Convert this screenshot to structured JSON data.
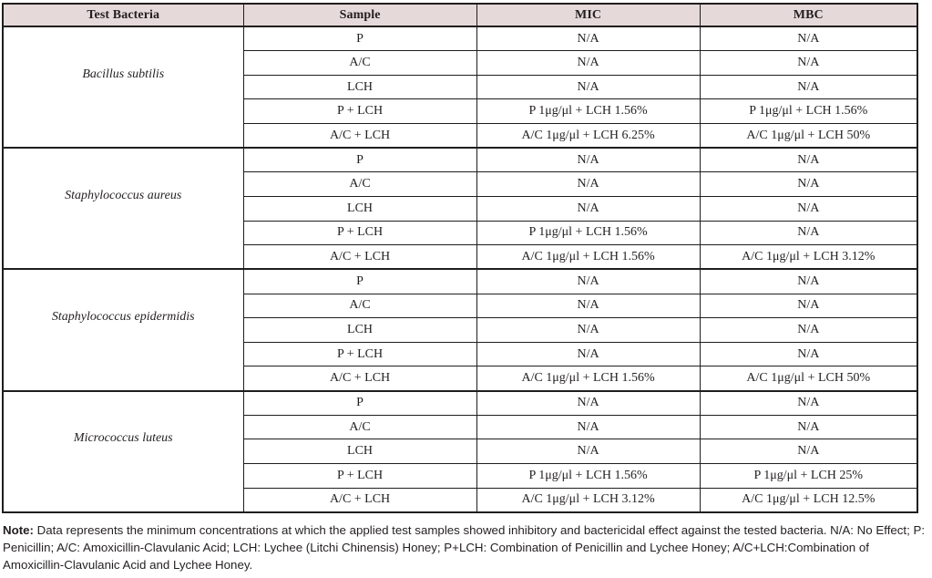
{
  "table": {
    "headers": [
      "Test Bacteria",
      "Sample",
      "MIC",
      "MBC"
    ],
    "groups": [
      {
        "bacteria": "Bacillus subtilis",
        "rows": [
          {
            "sample": "P",
            "mic": "N/A",
            "mbc": "N/A"
          },
          {
            "sample": "A/C",
            "mic": "N/A",
            "mbc": "N/A"
          },
          {
            "sample": "LCH",
            "mic": "N/A",
            "mbc": "N/A"
          },
          {
            "sample": "P + LCH",
            "mic": "P 1μg/μl + LCH 1.56%",
            "mbc": "P 1μg/μl + LCH 1.56%"
          },
          {
            "sample": "A/C + LCH",
            "mic": "A/C 1μg/μl + LCH 6.25%",
            "mbc": "A/C 1μg/μl + LCH 50%"
          }
        ]
      },
      {
        "bacteria": "Staphylococcus aureus",
        "rows": [
          {
            "sample": "P",
            "mic": "N/A",
            "mbc": "N/A"
          },
          {
            "sample": "A/C",
            "mic": "N/A",
            "mbc": "N/A"
          },
          {
            "sample": "LCH",
            "mic": "N/A",
            "mbc": "N/A"
          },
          {
            "sample": "P + LCH",
            "mic": "P 1μg/μl + LCH 1.56%",
            "mbc": "N/A"
          },
          {
            "sample": "A/C + LCH",
            "mic": "A/C 1μg/μl + LCH 1.56%",
            "mbc": "A/C 1μg/μl + LCH 3.12%"
          }
        ]
      },
      {
        "bacteria": "Staphylococcus epidermidis",
        "rows": [
          {
            "sample": "P",
            "mic": "N/A",
            "mbc": "N/A"
          },
          {
            "sample": "A/C",
            "mic": "N/A",
            "mbc": "N/A"
          },
          {
            "sample": "LCH",
            "mic": "N/A",
            "mbc": "N/A"
          },
          {
            "sample": "P + LCH",
            "mic": "N/A",
            "mbc": "N/A"
          },
          {
            "sample": "A/C + LCH",
            "mic": "A/C 1μg/μl + LCH 1.56%",
            "mbc": "A/C 1μg/μl + LCH 50%"
          }
        ]
      },
      {
        "bacteria": "Micrococcus luteus",
        "rows": [
          {
            "sample": "P",
            "mic": "N/A",
            "mbc": "N/A"
          },
          {
            "sample": "A/C",
            "mic": "N/A",
            "mbc": "N/A"
          },
          {
            "sample": "LCH",
            "mic": "N/A",
            "mbc": "N/A"
          },
          {
            "sample": "P + LCH",
            "mic": "P 1μg/μl + LCH 1.56%",
            "mbc": "P 1μg/μl + LCH 25%"
          },
          {
            "sample": "A/C + LCH",
            "mic": "A/C 1μg/μl + LCH 3.12%",
            "mbc": "A/C 1μg/μl + LCH 12.5%"
          }
        ]
      }
    ]
  },
  "note": {
    "label": "Note:",
    "text": " Data represents the minimum concentrations at which the applied test samples showed inhibitory and bactericidal effect against the tested bacteria. N/A: No Effect; P: Penicillin; A/C: Amoxicillin-Clavulanic Acid; LCH: Lychee (Litchi Chinensis) Honey; P+LCH: Combination of Penicillin and Lychee Honey; A/C+LCH:Combination of Amoxicillin-Clavulanic Acid and Lychee Honey."
  },
  "colors": {
    "header_bg": "#e6d9d9",
    "border": "#1f1e1e",
    "text": "#231f20"
  }
}
